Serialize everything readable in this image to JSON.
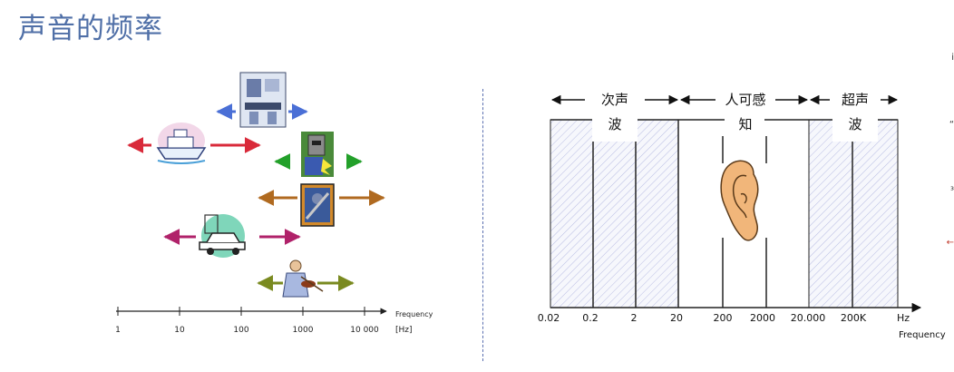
{
  "title": "声音的频率",
  "left_chart": {
    "axis_label": "Frequency",
    "unit": "[Hz]",
    "ticks": [
      "1",
      "10",
      "100",
      "1000",
      "10 000"
    ],
    "ranges": [
      {
        "icon": "robot-icon",
        "color": "#4a6fd6"
      },
      {
        "icon": "ship-icon",
        "color": "#d92a3a"
      },
      {
        "icon": "welder-icon",
        "color": "#23a02a"
      },
      {
        "icon": "worker-icon",
        "color": "#b06a20"
      },
      {
        "icon": "car-icon",
        "color": "#b0226a"
      },
      {
        "icon": "violinist-icon",
        "color": "#7a8a20"
      }
    ]
  },
  "right_chart": {
    "zones": [
      {
        "name": "infrasound",
        "line1": "次声",
        "line2": "波"
      },
      {
        "name": "audible",
        "line1": "人可感",
        "line2": "知"
      },
      {
        "name": "ultrasound",
        "line1": "超声",
        "line2": "波"
      }
    ],
    "ticks": [
      "0.02",
      "0.2",
      "2",
      "20",
      "200",
      "2000",
      "20.000",
      "200K",
      "Hz"
    ],
    "axis_label": "Frequency"
  },
  "edge_glyphs": [
    "i",
    "“",
    "³",
    "←"
  ]
}
